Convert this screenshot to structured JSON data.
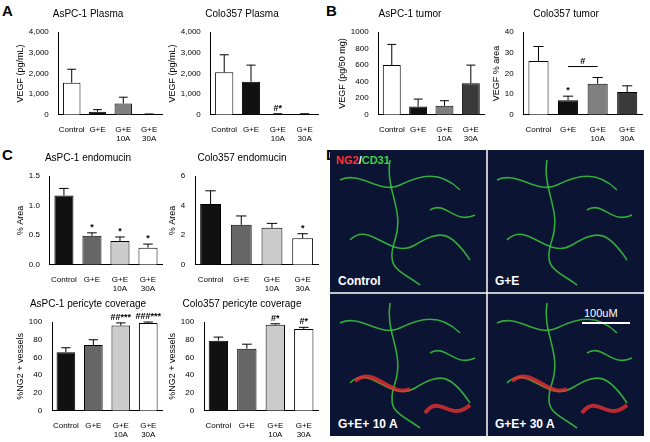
{
  "chart_data": [
    {
      "type": "bar",
      "title": "AsPC-1 Plasma",
      "ylabel": "VEGF (pg/mL)",
      "categories": [
        "Control",
        "G+E",
        "G+E 10A",
        "G+E 30A"
      ],
      "values": [
        1550,
        150,
        550,
        20
      ],
      "errors": [
        650,
        100,
        300,
        20
      ],
      "colors": [
        "#ffffff",
        "#111111",
        "#808080",
        "#3a3a3a"
      ],
      "annotations": [
        null,
        null,
        null,
        null
      ],
      "ylim": [
        0,
        4000
      ],
      "yticks": [
        0,
        {
          "value": 1000,
          "label": "1,000"
        },
        {
          "value": 2000,
          "label": "2,000"
        },
        {
          "value": 3000,
          "label": "3,000"
        },
        {
          "value": 4000,
          "label": "4,000"
        }
      ],
      "grid": false
    },
    {
      "type": "bar",
      "title": "Colo357 Plasma",
      "ylabel": "VEGF (pg/mL)",
      "categories": [
        "Control",
        "G+E",
        "G+E 10A",
        "G+E 30A"
      ],
      "values": [
        2050,
        1600,
        30,
        30
      ],
      "errors": [
        850,
        800,
        20,
        20
      ],
      "colors": [
        "#ffffff",
        "#111111",
        "#808080",
        "#3a3a3a"
      ],
      "annotations": [
        null,
        null,
        "#*",
        null
      ],
      "ylim": [
        0,
        4000
      ],
      "yticks": [
        0,
        {
          "value": 1000,
          "label": "1,000"
        },
        {
          "value": 2000,
          "label": "2,000"
        },
        {
          "value": 3000,
          "label": "3,000"
        },
        {
          "value": 4000,
          "label": "4,000"
        }
      ],
      "grid": false
    },
    {
      "type": "bar",
      "title": "AsPC-1 tumor",
      "ylabel": "VEGF (pg/50 mg)",
      "categories": [
        "Control",
        "G+E",
        "G+E 10A",
        "G+E 30A"
      ],
      "values": [
        600,
        100,
        110,
        380
      ],
      "errors": [
        250,
        90,
        60,
        220
      ],
      "colors": [
        "#ffffff",
        "#111111",
        "#808080",
        "#3a3a3a"
      ],
      "annotations": [
        null,
        null,
        null,
        null
      ],
      "ylim": [
        0,
        1000
      ],
      "yticks": [
        0,
        200,
        400,
        600,
        800,
        1000
      ],
      "grid": false
    },
    {
      "type": "bar",
      "title": "Colo357 tumor",
      "ylabel": "VEGF % area",
      "categories": [
        "Control",
        "G+E",
        "G+E 10A",
        "G+E 30A"
      ],
      "values": [
        26,
        7,
        15,
        11
      ],
      "errors": [
        7,
        2,
        3,
        3
      ],
      "colors": [
        "#ffffff",
        "#111111",
        "#808080",
        "#3a3a3a"
      ],
      "annotations": [
        null,
        "*",
        null,
        null
      ],
      "brackets": [
        {
          "from": "G+E",
          "to": "G+E 10A",
          "label": "#"
        }
      ],
      "ylim": [
        0,
        40
      ],
      "yticks": [
        0,
        10,
        20,
        30,
        40
      ],
      "grid": false
    },
    {
      "type": "bar",
      "title": "AsPC-1 endomucin",
      "ylabel": "% Area",
      "categories": [
        "Control",
        "G+E",
        "G+E 10A",
        "G+E 30A"
      ],
      "values": [
        1.17,
        0.49,
        0.4,
        0.29
      ],
      "errors": [
        0.12,
        0.05,
        0.07,
        0.06
      ],
      "colors": [
        "#111111",
        "#666666",
        "#cccccc",
        "#ffffff"
      ],
      "annotations": [
        null,
        "*",
        "*",
        "*"
      ],
      "ylim": [
        0,
        1.5
      ],
      "yticks": [
        {
          "value": 0,
          "label": "0.0"
        },
        0.5,
        {
          "value": 1,
          "label": "1.0"
        },
        1.5
      ],
      "grid": false
    },
    {
      "type": "bar",
      "title": "Colo357 endomucin",
      "ylabel": "% Area",
      "categories": [
        "Control",
        "G+E",
        "G+E 10A",
        "G+E 30A"
      ],
      "values": [
        4.1,
        2.7,
        2.5,
        1.8
      ],
      "errors": [
        0.9,
        0.6,
        0.3,
        0.3
      ],
      "colors": [
        "#111111",
        "#666666",
        "#cccccc",
        "#ffffff"
      ],
      "annotations": [
        null,
        null,
        null,
        "*"
      ],
      "ylim": [
        0,
        6
      ],
      "yticks": [
        0,
        2,
        4,
        6
      ],
      "grid": false
    },
    {
      "type": "bar",
      "title": "AsPC-1 pericyte coverage",
      "ylabel": "%NG2 + vessels",
      "categories": [
        "Control",
        "G+E",
        "G+E 10A",
        "G+E 30A"
      ],
      "values": [
        66,
        74,
        96,
        99
      ],
      "errors": [
        5,
        6,
        3,
        1
      ],
      "colors": [
        "#111111",
        "#666666",
        "#cccccc",
        "#ffffff"
      ],
      "annotations": [
        null,
        null,
        "##***",
        "###***"
      ],
      "ylim": [
        0,
        100
      ],
      "yticks": [
        0,
        20,
        40,
        60,
        80,
        100
      ],
      "grid": false
    },
    {
      "type": "bar",
      "title": "Colo357 pericyte coverage",
      "ylabel": "%NG2 + vessels",
      "categories": [
        "Control",
        "G+E",
        "G+E 10A",
        "G+E 30A"
      ],
      "values": [
        79,
        70,
        97,
        92
      ],
      "errors": [
        4,
        5,
        1,
        2
      ],
      "colors": [
        "#111111",
        "#666666",
        "#cccccc",
        "#ffffff"
      ],
      "annotations": [
        null,
        null,
        "#*",
        "#*"
      ],
      "ylim": [
        0,
        100
      ],
      "yticks": [
        0,
        20,
        40,
        60,
        80,
        100
      ],
      "grid": false
    }
  ],
  "panel_labels": [
    "A",
    "B",
    "C",
    "D"
  ],
  "image": {
    "stains": [
      {
        "text": "NG2",
        "color": "#ff3030"
      },
      {
        "text": "CD31",
        "color": "#40d040"
      }
    ],
    "stain_separator": "/",
    "quadrants": [
      "Control",
      "G+E",
      "G+E+ 10 A",
      "G+E+ 30 A"
    ],
    "scale_bar": "100uM"
  }
}
